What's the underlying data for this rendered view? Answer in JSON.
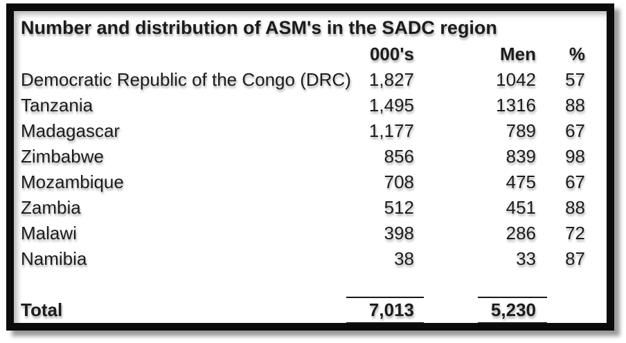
{
  "title": "Number and distribution of ASM's in the SADC region",
  "columns": {
    "thousands": "000's",
    "men": "Men",
    "percent": "%"
  },
  "rows": [
    {
      "name": "Democratic Republic of the Congo (DRC)",
      "thousands": "1,827",
      "men": "1042",
      "percent": "57"
    },
    {
      "name": "Tanzania",
      "thousands": "1,495",
      "men": "1316",
      "percent": "88"
    },
    {
      "name": "Madagascar",
      "thousands": "1,177",
      "men": "789",
      "percent": "67"
    },
    {
      "name": "Zimbabwe",
      "thousands": "856",
      "men": "839",
      "percent": "98"
    },
    {
      "name": "Mozambique",
      "thousands": "708",
      "men": "475",
      "percent": "67"
    },
    {
      "name": "Zambia",
      "thousands": "512",
      "men": "451",
      "percent": "88"
    },
    {
      "name": "Malawi",
      "thousands": "398",
      "men": "286",
      "percent": "72"
    },
    {
      "name": "Namibia",
      "thousands": "38",
      "men": "33",
      "percent": "87"
    }
  ],
  "total": {
    "label": "Total",
    "thousands": "7,013",
    "men": "5,230"
  },
  "colors": {
    "frame": "#0b0b0b",
    "text": "#1c1c1c",
    "background": "#ffffff"
  }
}
